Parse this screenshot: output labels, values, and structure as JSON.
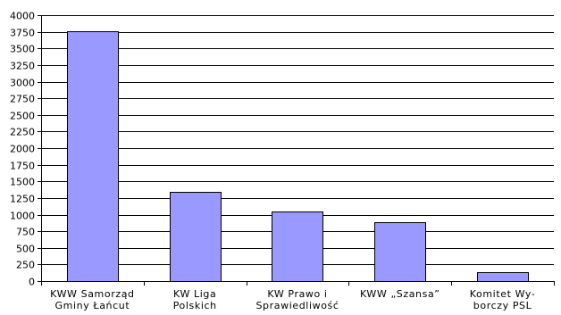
{
  "chart_data": {
    "type": "bar",
    "title": "",
    "xlabel": "",
    "ylabel": "",
    "ylim": [
      0,
      4000
    ],
    "ytick_step": 250,
    "grid": true,
    "bar_color": "#9999ff",
    "categories": [
      [
        "KWW Samorząd",
        "Gminy Łańcut"
      ],
      [
        "KW Liga",
        "Polskich"
      ],
      [
        "KW Prawo i",
        "Sprawiedliwość"
      ],
      [
        "KWW „Szansa”"
      ],
      [
        "Komitet Wy-",
        "borczy PSL"
      ]
    ],
    "values": [
      3760,
      1340,
      1050,
      880,
      140
    ]
  }
}
